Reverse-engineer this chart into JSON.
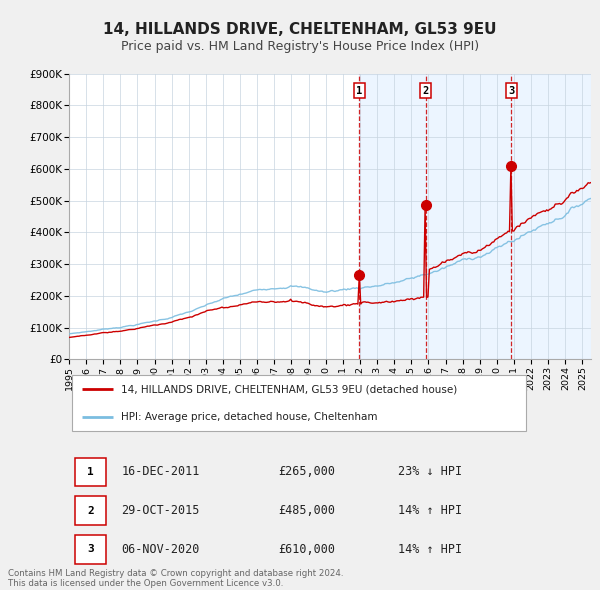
{
  "title": "14, HILLANDS DRIVE, CHELTENHAM, GL53 9EU",
  "subtitle": "Price paid vs. HM Land Registry's House Price Index (HPI)",
  "title_fontsize": 11,
  "subtitle_fontsize": 9,
  "hpi_color": "#7bbde0",
  "price_color": "#cc0000",
  "background_color": "#f0f0f0",
  "plot_bg_color": "#ffffff",
  "ylim": [
    0,
    900000
  ],
  "yticks": [
    0,
    100000,
    200000,
    300000,
    400000,
    500000,
    600000,
    700000,
    800000,
    900000
  ],
  "ytick_labels": [
    "£0",
    "£100K",
    "£200K",
    "£300K",
    "£400K",
    "£500K",
    "£600K",
    "£700K",
    "£800K",
    "£900K"
  ],
  "xlim_start": 1995.0,
  "xlim_end": 2025.5,
  "xtick_years": [
    1995,
    1996,
    1997,
    1998,
    1999,
    2000,
    2001,
    2002,
    2003,
    2004,
    2005,
    2006,
    2007,
    2008,
    2009,
    2010,
    2011,
    2012,
    2013,
    2014,
    2015,
    2016,
    2017,
    2018,
    2019,
    2020,
    2021,
    2022,
    2023,
    2024,
    2025
  ],
  "sale_dates": [
    2011.96,
    2015.83,
    2020.84
  ],
  "sale_prices": [
    265000,
    485000,
    610000
  ],
  "sale_labels": [
    "1",
    "2",
    "3"
  ],
  "vline_color": "#cc0000",
  "shade_color": "#ddeeff",
  "legend_label_red": "14, HILLANDS DRIVE, CHELTENHAM, GL53 9EU (detached house)",
  "legend_label_blue": "HPI: Average price, detached house, Cheltenham",
  "table_rows": [
    {
      "num": "1",
      "date": "16-DEC-2011",
      "price": "£265,000",
      "pct": "23% ↓ HPI"
    },
    {
      "num": "2",
      "date": "29-OCT-2015",
      "price": "£485,000",
      "pct": "14% ↑ HPI"
    },
    {
      "num": "3",
      "date": "06-NOV-2020",
      "price": "£610,000",
      "pct": "14% ↑ HPI"
    }
  ],
  "footer": "Contains HM Land Registry data © Crown copyright and database right 2024.\nThis data is licensed under the Open Government Licence v3.0."
}
